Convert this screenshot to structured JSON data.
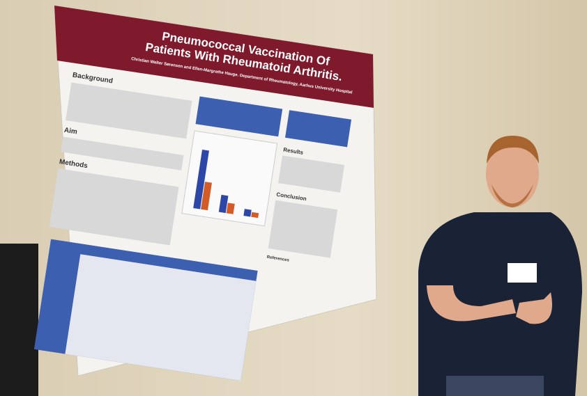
{
  "poster": {
    "title_lines": [
      "Pneumococcal Vaccination Of",
      "Patients With Rheumatoid Arthritis."
    ],
    "authors": "Christian Walter Sørensen and Ellen-Margrethe Hauge. Department of Rheumatology, Aarhus University Hospital",
    "sections": [
      "Background",
      "Aim",
      "Methods",
      "Results",
      "Conclusion",
      "References"
    ]
  }
}
